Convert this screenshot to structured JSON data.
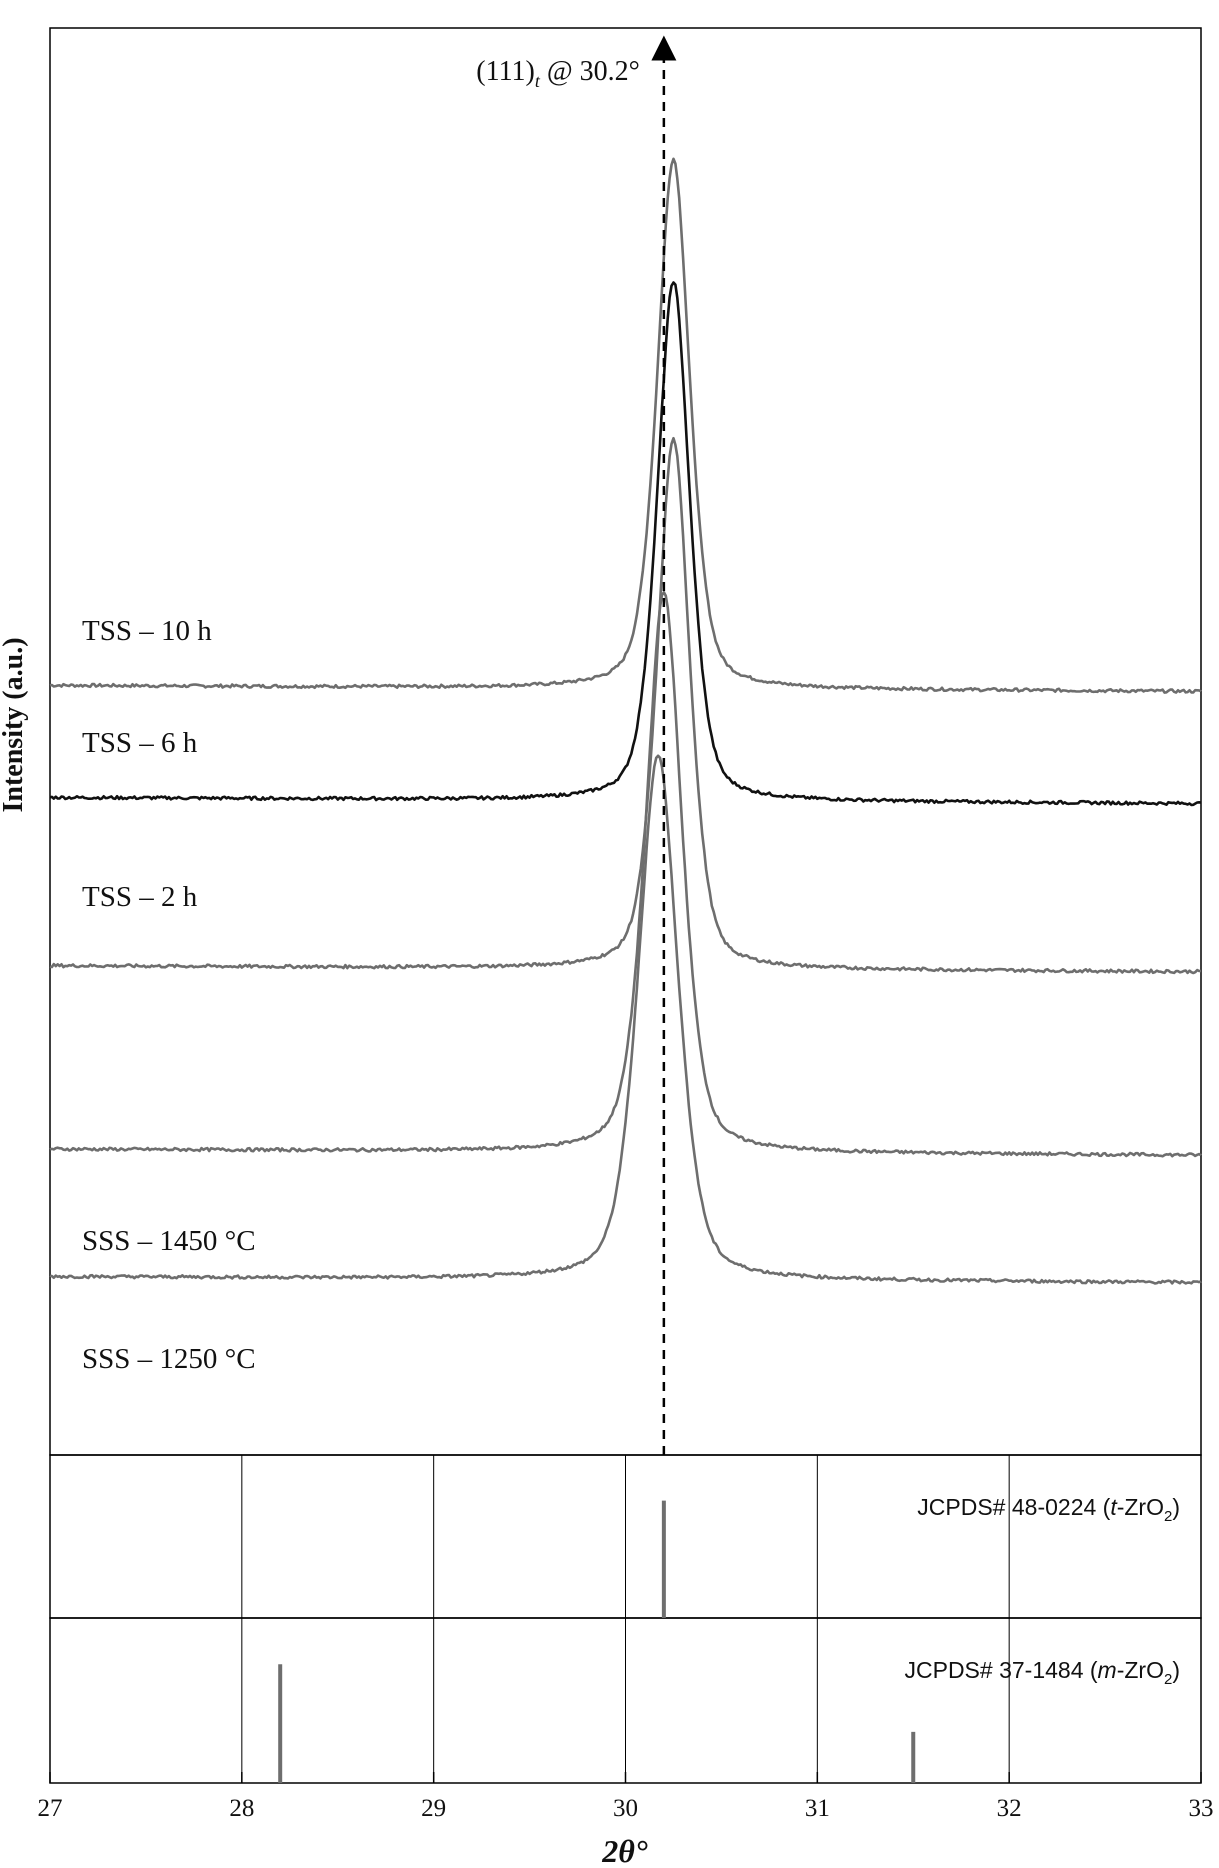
{
  "chart_data": {
    "type": "line",
    "xlabel": "2θ°",
    "ylabel": "Intensity (a.u.)",
    "xlim": [
      27,
      33
    ],
    "x_ticks": [
      "27",
      "28",
      "29",
      "30",
      "31",
      "32",
      "33"
    ],
    "annotation": {
      "text_main": "(111)",
      "text_sub": "t",
      "text_rest": " @ 30.2°",
      "x": 30.2
    },
    "series": [
      {
        "name": "TSS – 10 h",
        "peak_x": 30.25,
        "peak_height": 10.4,
        "width": 0.09,
        "baseline_level": 12.6,
        "color": "#6e6e6e"
      },
      {
        "name": "TSS – 6 h",
        "peak_x": 30.25,
        "peak_height": 10.2,
        "width": 0.09,
        "baseline_level": 10.4,
        "color": "#111111"
      },
      {
        "name": "TSS – 2 h",
        "peak_x": 30.25,
        "peak_height": 10.4,
        "width": 0.09,
        "baseline_level": 7.1,
        "color": "#6e6e6e"
      },
      {
        "name": "SSS – 1450 °C",
        "peak_x": 30.2,
        "peak_height": 11.0,
        "width": 0.1,
        "baseline_level": 3.5,
        "color": "#6e6e6e"
      },
      {
        "name": "SSS – 1250 °C",
        "peak_x": 30.17,
        "peak_height": 10.3,
        "width": 0.11,
        "baseline_level": 1.0,
        "color": "#6e6e6e"
      }
    ],
    "reference_panels": [
      {
        "label_prefix": "JCPDS# 48-0224 (",
        "label_italic": "t",
        "label_mid": "-ZrO",
        "label_sub": "2",
        "label_suffix": ")",
        "lines": [
          {
            "x": 30.2,
            "intensity": 100
          }
        ]
      },
      {
        "label_prefix": "JCPDS# 37-1484 (",
        "label_italic": "m",
        "label_mid": "-ZrO",
        "label_sub": "2",
        "label_suffix": ")",
        "lines": [
          {
            "x": 28.2,
            "intensity": 100
          },
          {
            "x": 31.5,
            "intensity": 43
          }
        ]
      }
    ]
  }
}
